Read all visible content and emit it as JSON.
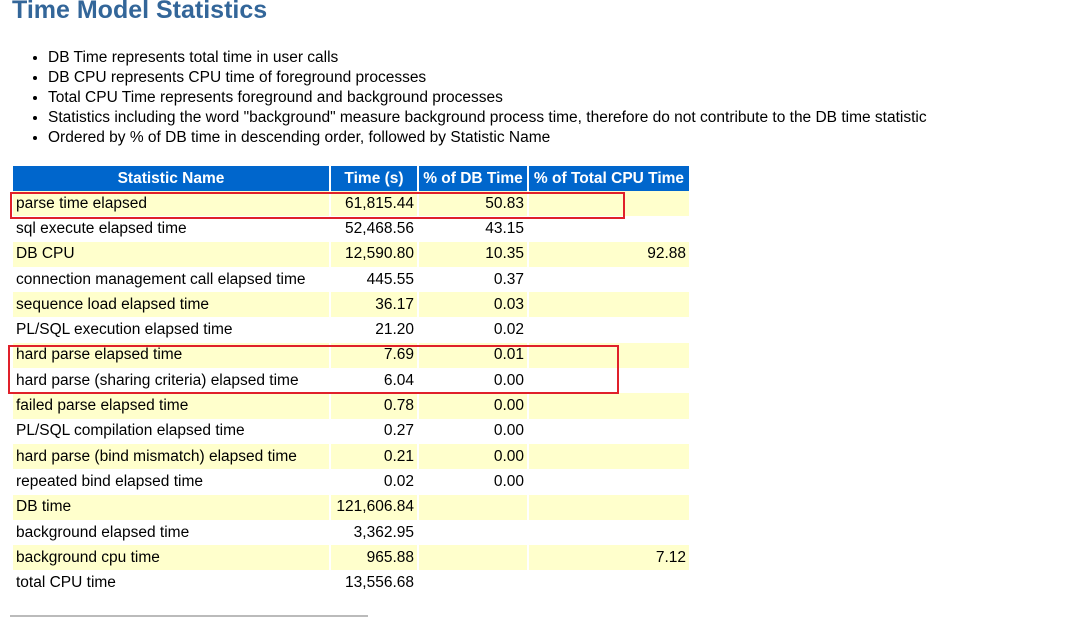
{
  "title": "Time Model Statistics",
  "notes": [
    "DB Time represents total time in user calls",
    "DB CPU represents CPU time of foreground processes",
    "Total CPU Time represents foreground and background processes",
    "Statistics including the word \"background\" measure background process time, therefore do not contribute to the DB time statistic",
    "Ordered by % of DB time in descending order, followed by Statistic Name"
  ],
  "table": {
    "headers": [
      "Statistic Name",
      "Time (s)",
      "% of DB Time",
      "% of Total CPU Time"
    ],
    "rows": [
      [
        "parse time elapsed",
        "61,815.44",
        "50.83",
        ""
      ],
      [
        "sql execute elapsed time",
        "52,468.56",
        "43.15",
        ""
      ],
      [
        "DB CPU",
        "12,590.80",
        "10.35",
        "92.88"
      ],
      [
        "connection management call elapsed time",
        "445.55",
        "0.37",
        ""
      ],
      [
        "sequence load elapsed time",
        "36.17",
        "0.03",
        ""
      ],
      [
        "PL/SQL execution elapsed time",
        "21.20",
        "0.02",
        ""
      ],
      [
        "hard parse elapsed time",
        "7.69",
        "0.01",
        ""
      ],
      [
        "hard parse (sharing criteria) elapsed time",
        "6.04",
        "0.00",
        ""
      ],
      [
        "failed parse elapsed time",
        "0.78",
        "0.00",
        ""
      ],
      [
        "PL/SQL compilation elapsed time",
        "0.27",
        "0.00",
        ""
      ],
      [
        "hard parse (bind mismatch) elapsed time",
        "0.21",
        "0.00",
        ""
      ],
      [
        "repeated bind elapsed time",
        "0.02",
        "0.00",
        ""
      ],
      [
        "DB time",
        "121,606.84",
        "",
        ""
      ],
      [
        "background elapsed time",
        "3,362.95",
        "",
        ""
      ],
      [
        "background cpu time",
        "965.88",
        "",
        "7.12"
      ],
      [
        "total CPU time",
        "13,556.68",
        "",
        ""
      ]
    ]
  },
  "colors": {
    "header": "#0066cc",
    "odd_row": "#ffffcc",
    "highlight": "#e0202a",
    "title": "#336699"
  }
}
